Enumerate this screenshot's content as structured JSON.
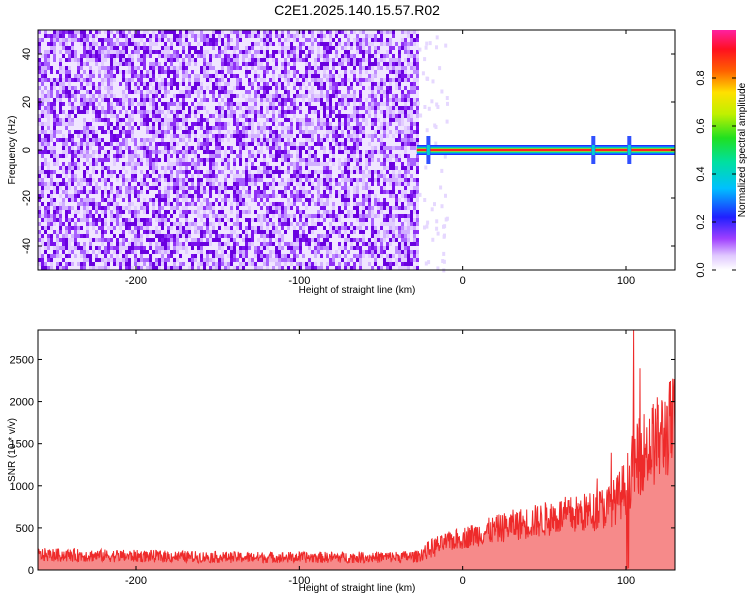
{
  "title": "C2E1.2025.140.15.57.R02",
  "colors": {
    "background": "#ffffff",
    "snr_line": "#ee2a2a",
    "axis": "#000000"
  },
  "chart_data": [
    {
      "type": "heatmap",
      "xlabel": "Height of straight line (km)",
      "ylabel": "Frequency (Hz)",
      "xlim": [
        -260,
        130
      ],
      "ylim": [
        -50,
        50
      ],
      "x_ticks": [
        -200,
        -100,
        0,
        100
      ],
      "y_ticks": [
        -40,
        -20,
        0,
        20,
        40
      ],
      "colorbar": {
        "label": "Normalized spectral amplitude",
        "range": [
          0,
          1
        ],
        "ticks": [
          "0.0",
          "0.2",
          "0.4",
          "0.6",
          "0.8"
        ],
        "colormap": "rainbow (magenta-blue-cyan-green-yellow-red-magenta)"
      },
      "description_values": {
        "noise_region_x": [
          -260,
          -28
        ],
        "tone_region_x": [
          -28,
          130
        ],
        "tone_frequency_hz": 0,
        "spikes_at_x": [
          -21,
          80,
          102
        ]
      }
    },
    {
      "type": "line",
      "xlabel": "Height of straight line (km)",
      "ylabel": "SNR (10 * v/v)",
      "xlim": [
        -260,
        130
      ],
      "ylim": [
        0,
        2850
      ],
      "x_ticks": [
        -200,
        -100,
        0,
        100
      ],
      "y_ticks": [
        0,
        500,
        1000,
        1500,
        2000,
        2500
      ],
      "series": [
        {
          "x": [
            -260,
            -240,
            -220,
            -200,
            -180,
            -160,
            -140,
            -120,
            -100,
            -80,
            -60,
            -40,
            -28,
            -20,
            -10,
            0,
            10,
            20,
            30,
            40,
            50,
            60,
            70,
            80,
            90,
            95,
            100,
            105,
            110,
            120,
            130
          ],
          "y": [
            180,
            175,
            170,
            165,
            160,
            155,
            150,
            150,
            150,
            150,
            150,
            155,
            160,
            250,
            330,
            380,
            430,
            480,
            530,
            560,
            600,
            640,
            660,
            700,
            760,
            850,
            1000,
            1250,
            1400,
            1550,
            1750
          ]
        }
      ]
    }
  ]
}
